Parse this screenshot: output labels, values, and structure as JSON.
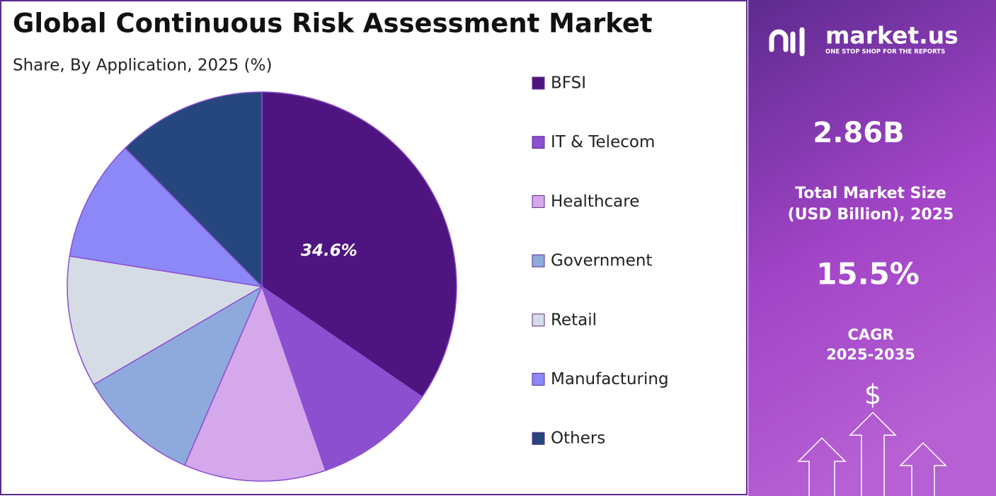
{
  "chart_data": {
    "type": "pie",
    "title": "Global Continuous Risk Assessment Market",
    "subtitle": "Share, By Application, 2025 (%)",
    "categories": [
      "BFSI",
      "IT & Telecom",
      "Healthcare",
      "Government",
      "Retail",
      "Manufacturing",
      "Others"
    ],
    "values": [
      34.6,
      10.1,
      11.8,
      10.1,
      10.9,
      10.1,
      12.4
    ],
    "value_labels": [
      "34.6%",
      null,
      null,
      null,
      null,
      null,
      null
    ],
    "colors": [
      "#4e1580",
      "#8b4fd0",
      "#d5a8ec",
      "#8eaadc",
      "#d6dce5",
      "#8c88f8",
      "#25477d"
    ],
    "legend": "right"
  },
  "side_panel": {
    "brand": "market.us",
    "tagline": "ONE STOP SHOP FOR THE REPORTS",
    "market_size": "2.86B",
    "market_size_caption": [
      "Total Market Size",
      "(USD Billion), 2025"
    ],
    "cagr": "15.5%",
    "cagr_caption": [
      "CAGR",
      "2025-2035"
    ],
    "currency_symbol": "$"
  }
}
